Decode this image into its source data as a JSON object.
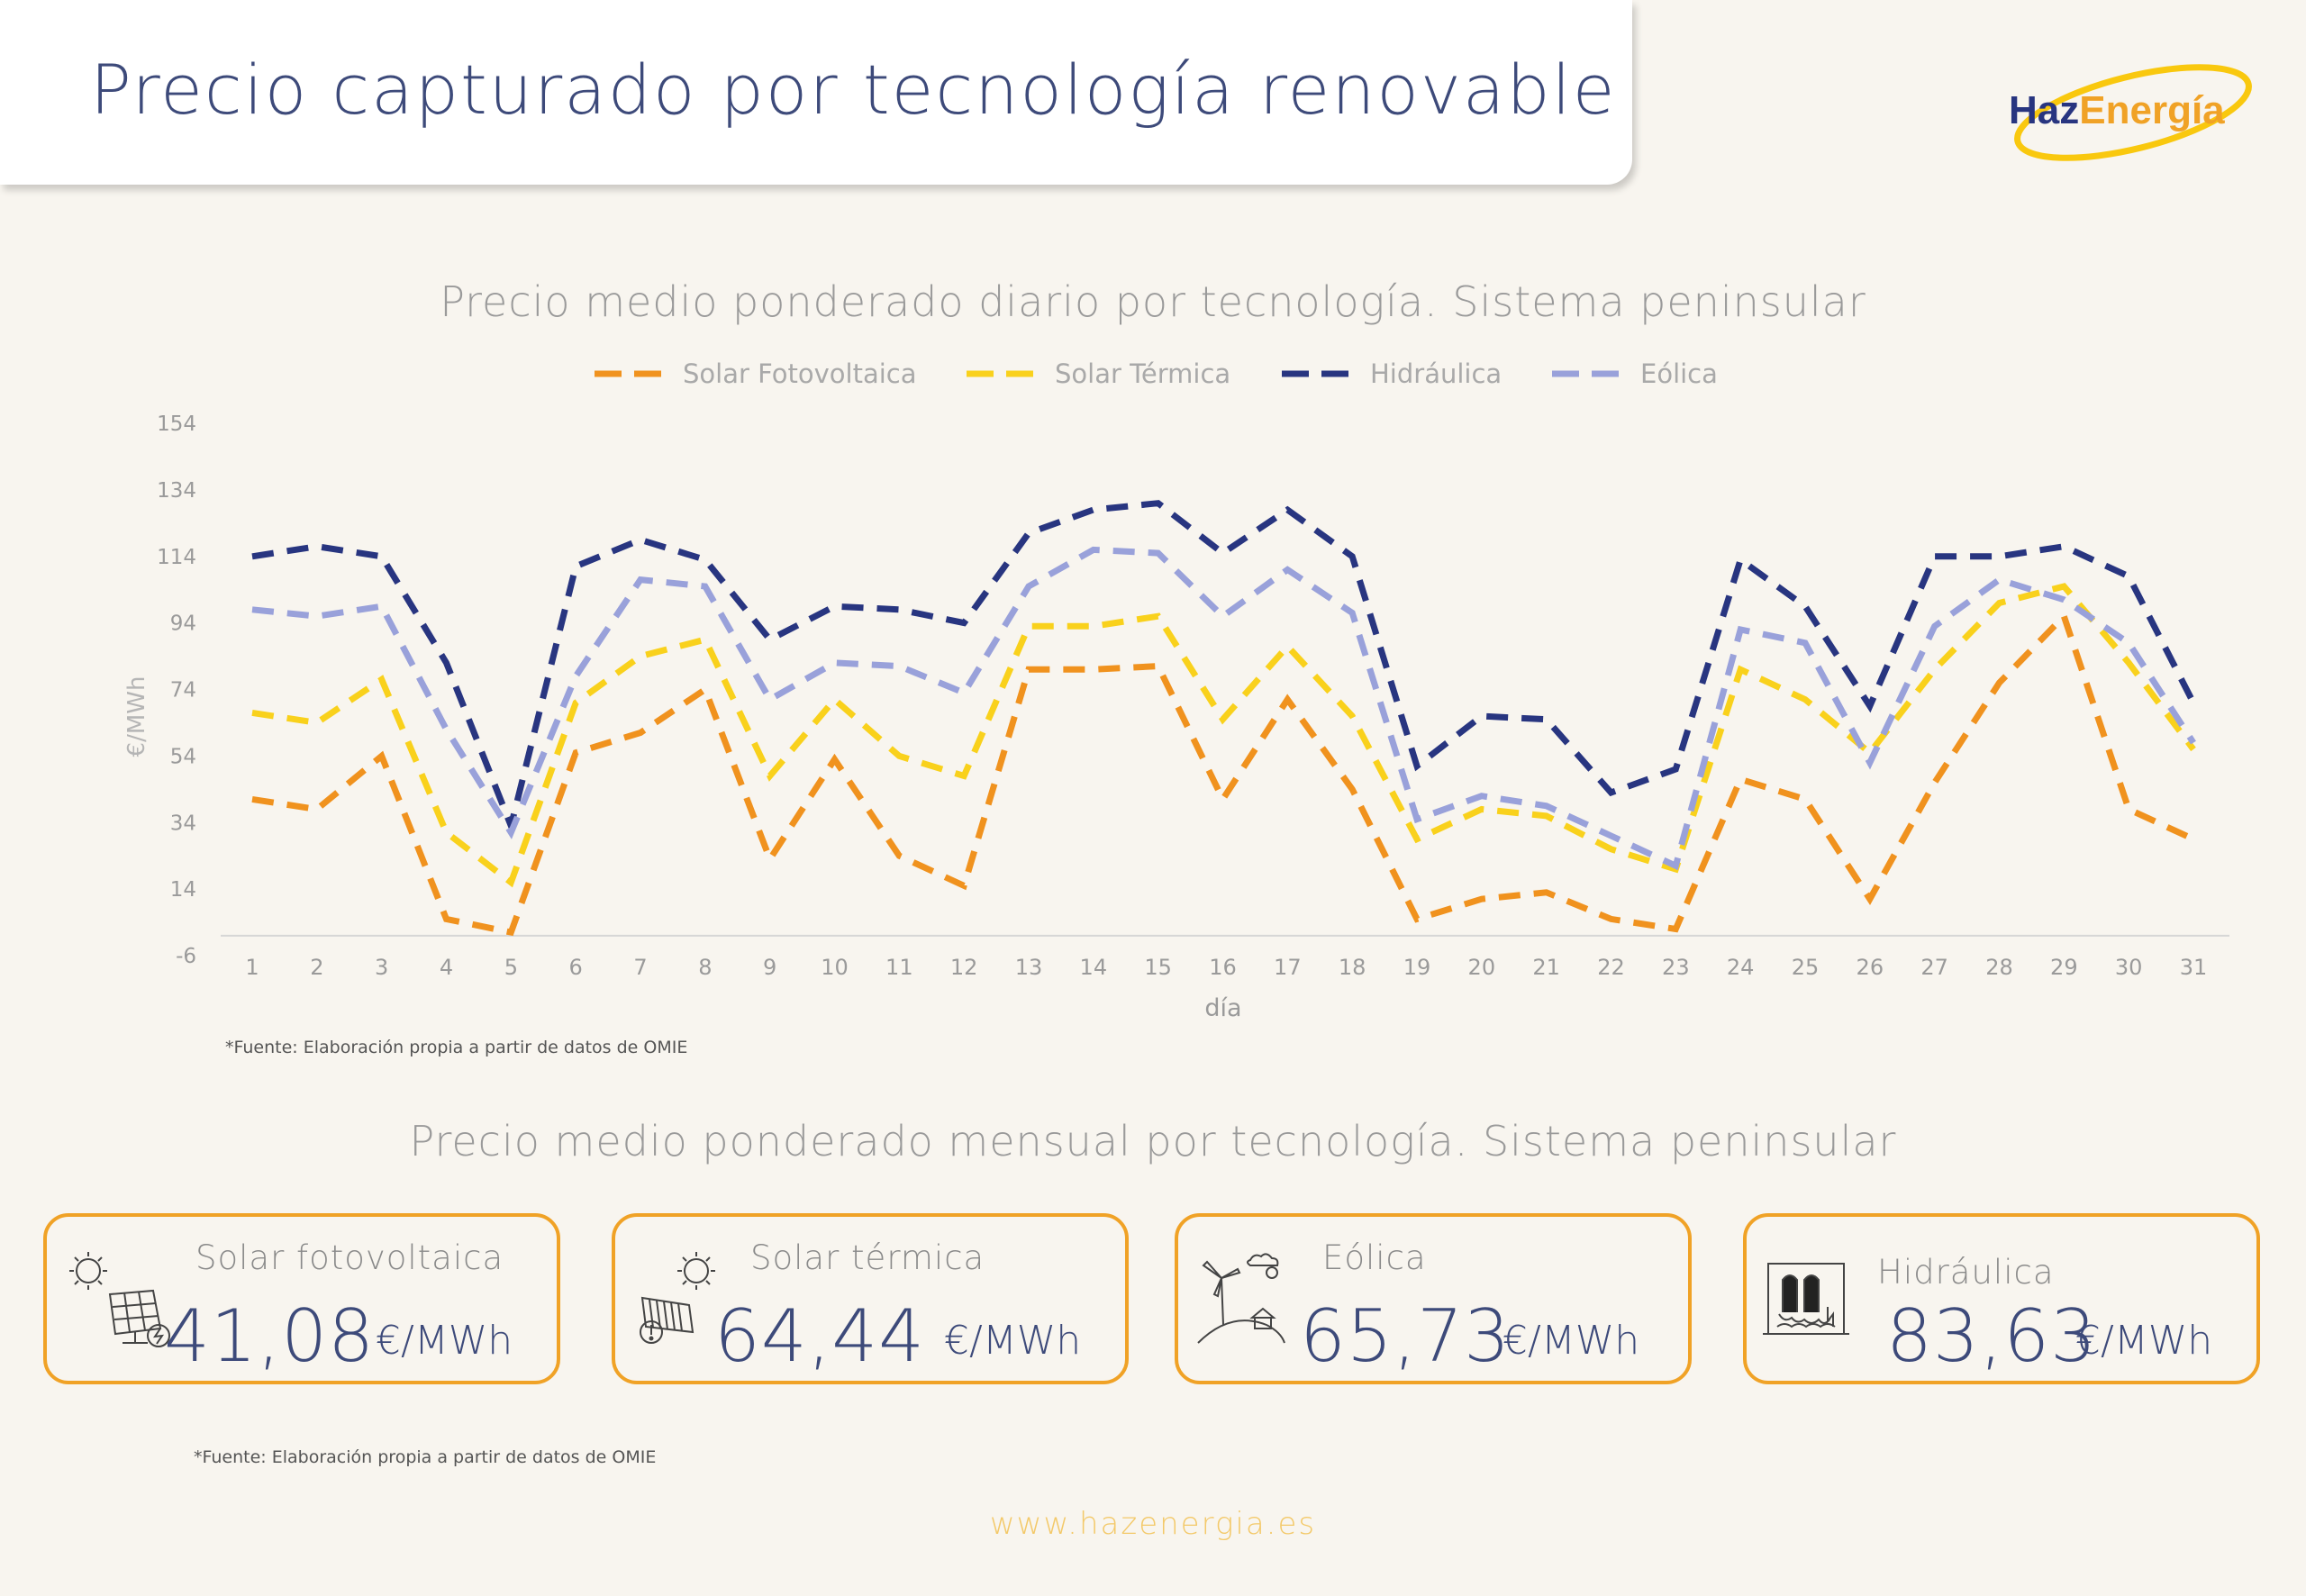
{
  "header": {
    "title": "Precio capturado por tecnología renovable",
    "logo": {
      "part1": "Haz",
      "part2": "Energía"
    }
  },
  "daily_section": {
    "title": "Precio medio ponderado diario por tecnología. Sistema peninsular",
    "source": "*Fuente:  Elaboración propia a partir de datos de OMIE"
  },
  "monthly_section": {
    "title": "Precio medio ponderado mensual por tecnología. Sistema peninsular",
    "source": "*Fuente:  Elaboración propia a partir de datos de OMIE",
    "cards": [
      {
        "label": "Solar fotovoltaica",
        "value": "41,08",
        "unit": "€/MWh",
        "icon": "solar-panel-icon"
      },
      {
        "label": "Solar térmica",
        "value": "64,44",
        "unit": "€/MWh",
        "icon": "solar-thermal-icon"
      },
      {
        "label": "Eólica",
        "value": "65,73",
        "unit": "€/MWh",
        "icon": "wind-turbine-icon"
      },
      {
        "label": "Hidráulica",
        "value": "83,63",
        "unit": "€/MWh",
        "icon": "hydro-dam-icon"
      }
    ]
  },
  "footer": {
    "url": "www.hazenergia.es"
  },
  "colors": {
    "accent": "#f0a226",
    "navy": "#3d4a7a",
    "background": "#f8f5ef"
  },
  "chart_data": {
    "type": "line",
    "title": "Precio medio ponderado diario por tecnología. Sistema peninsular",
    "xlabel": "día",
    "ylabel": "€/MWh",
    "ylim": [
      -6,
      154
    ],
    "yticks": [
      "-6",
      "14",
      "34",
      "54",
      "74",
      "94",
      "114",
      "134",
      "154"
    ],
    "legend_position": "top",
    "line_style": "dashed",
    "x": [
      1,
      2,
      3,
      4,
      5,
      6,
      7,
      8,
      9,
      10,
      11,
      12,
      13,
      14,
      15,
      16,
      17,
      18,
      19,
      20,
      21,
      22,
      23,
      24,
      25,
      26,
      27,
      28,
      29,
      30,
      31
    ],
    "series": [
      {
        "name": "Solar Fotovoltaica",
        "color": "#f0921e",
        "values": [
          41,
          38,
          54,
          5,
          1,
          55,
          61,
          74,
          23,
          53,
          24,
          15,
          80,
          80,
          81,
          41,
          71,
          44,
          5,
          11,
          13,
          5,
          2,
          47,
          41,
          11,
          46,
          76,
          96,
          38,
          29
        ]
      },
      {
        "name": "Solar Térmica",
        "color": "#f9d11c",
        "values": [
          67,
          64,
          77,
          31,
          16,
          70,
          84,
          89,
          48,
          71,
          54,
          48,
          93,
          93,
          96,
          65,
          87,
          66,
          29,
          38,
          36,
          26,
          20,
          80,
          71,
          55,
          80,
          100,
          105,
          82,
          56
        ]
      },
      {
        "name": "Hidráulica",
        "color": "#283580",
        "values": [
          114,
          117,
          114,
          82,
          33,
          111,
          119,
          113,
          89,
          99,
          98,
          94,
          121,
          128,
          130,
          115,
          128,
          114,
          51,
          66,
          65,
          43,
          50,
          113,
          99,
          69,
          114,
          114,
          117,
          108,
          70
        ]
      },
      {
        "name": "Eólica",
        "color": "#99a1da",
        "values": [
          98,
          96,
          99,
          62,
          31,
          78,
          107,
          105,
          71,
          82,
          81,
          73,
          105,
          116,
          115,
          96,
          110,
          97,
          35,
          42,
          39,
          30,
          21,
          92,
          88,
          52,
          93,
          107,
          101,
          88,
          58
        ]
      }
    ]
  }
}
